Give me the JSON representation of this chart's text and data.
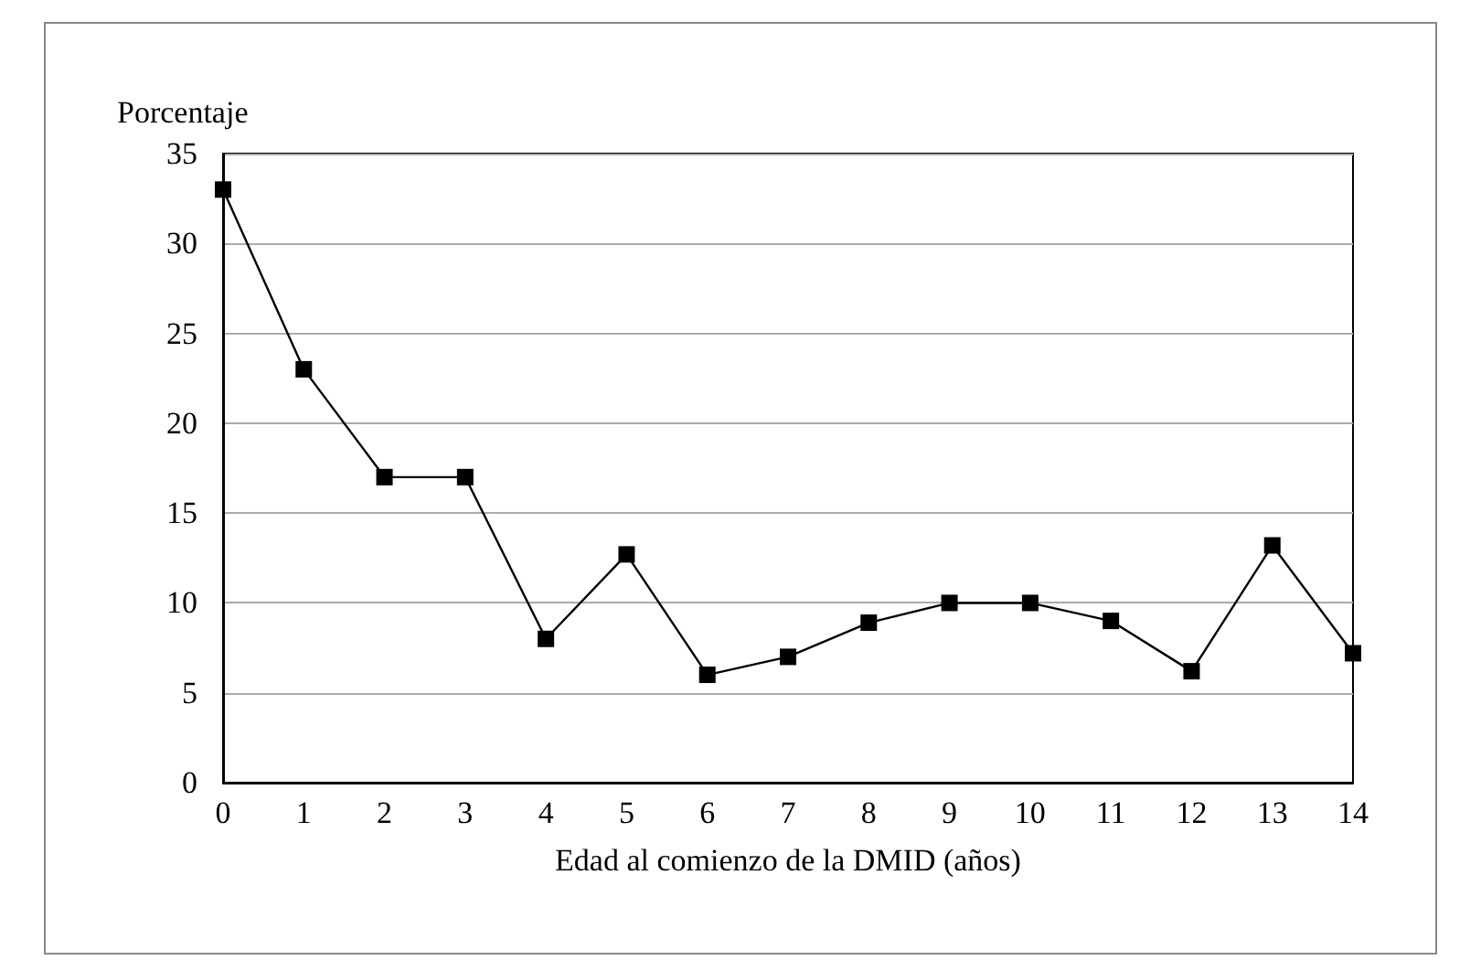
{
  "chart_data": {
    "type": "line",
    "xlabel": "Edad al comienzo de la DMID (años)",
    "ylabel": "Porcentaje",
    "x": [
      0,
      1,
      2,
      3,
      4,
      5,
      6,
      7,
      8,
      9,
      10,
      11,
      12,
      13,
      14
    ],
    "series": [
      {
        "color": "#000000",
        "values": [
          33,
          23,
          17,
          17,
          8,
          12.7,
          6,
          7,
          8.9,
          10,
          10,
          9,
          6.2,
          13.2,
          7.2
        ]
      }
    ],
    "xlim": [
      0,
      14
    ],
    "xticks": [
      0,
      1,
      2,
      3,
      4,
      5,
      6,
      7,
      8,
      9,
      10,
      11,
      12,
      13,
      14
    ],
    "ylim": [
      0,
      35
    ],
    "yticks": [
      0,
      5,
      10,
      15,
      20,
      25,
      30,
      35
    ],
    "grid": "y",
    "marker": "square",
    "line_style": "solid"
  }
}
